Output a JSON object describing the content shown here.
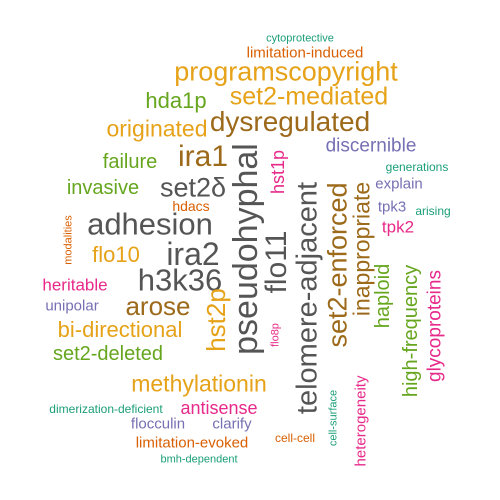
{
  "colors": {
    "orange_gold": "#E6A218",
    "brown": "#9C6A1A",
    "green": "#66A61E",
    "dark_gray": "#555555",
    "magenta": "#E7298A",
    "purple": "#7570B3",
    "teal": "#1B9E77",
    "burnt_orange": "#D95F02"
  },
  "words": [
    {
      "text": "cytoprotective",
      "color": "#1B9E77"
    },
    {
      "text": "limitation-induced",
      "color": "#D95F02"
    },
    {
      "text": "programscopyright",
      "color": "#E6A218"
    },
    {
      "text": "hda1p",
      "color": "#66A61E"
    },
    {
      "text": "set2-mediated",
      "color": "#E6A218"
    },
    {
      "text": "dysregulated",
      "color": "#9C6A1A"
    },
    {
      "text": "originated",
      "color": "#E6A218"
    },
    {
      "text": "ira1",
      "color": "#9C6A1A"
    },
    {
      "text": "pseudohyphal",
      "color": "#555555"
    },
    {
      "text": "hst1p",
      "color": "#E7298A"
    },
    {
      "text": "discernible",
      "color": "#7570B3"
    },
    {
      "text": "generations",
      "color": "#1B9E77"
    },
    {
      "text": "failure",
      "color": "#66A61E"
    },
    {
      "text": "set2δ",
      "color": "#555555"
    },
    {
      "text": "explain",
      "color": "#7570B3"
    },
    {
      "text": "invasive",
      "color": "#66A61E"
    },
    {
      "text": "hdacs",
      "color": "#D95F02"
    },
    {
      "text": "tpk3",
      "color": "#7570B3"
    },
    {
      "text": "arising",
      "color": "#1B9E77"
    },
    {
      "text": "adhesion",
      "color": "#555555"
    },
    {
      "text": "telomere-adjacent",
      "color": "#555555"
    },
    {
      "text": "set2-enforced",
      "color": "#9C6A1A"
    },
    {
      "text": "inappropriate",
      "color": "#9C6A1A"
    },
    {
      "text": "tpk2",
      "color": "#E7298A"
    },
    {
      "text": "modalities",
      "color": "#D95F02"
    },
    {
      "text": "flo10",
      "color": "#E6A218"
    },
    {
      "text": "ira2",
      "color": "#555555"
    },
    {
      "text": "flo11",
      "color": "#555555"
    },
    {
      "text": "h3k36",
      "color": "#555555"
    },
    {
      "text": "heritable",
      "color": "#E7298A"
    },
    {
      "text": "haploid",
      "color": "#66A61E"
    },
    {
      "text": "glycoproteins",
      "color": "#E7298A"
    },
    {
      "text": "unipolar",
      "color": "#7570B3"
    },
    {
      "text": "arose",
      "color": "#9C6A1A"
    },
    {
      "text": "hst2p",
      "color": "#E6A218"
    },
    {
      "text": "high-frequency",
      "color": "#66A61E"
    },
    {
      "text": "bi-directional",
      "color": "#E6A218"
    },
    {
      "text": "set2-deleted",
      "color": "#66A61E"
    },
    {
      "text": "flo8p",
      "color": "#E7298A"
    },
    {
      "text": "methylationin",
      "color": "#E6A218"
    },
    {
      "text": "heterogeneity",
      "color": "#E7298A"
    },
    {
      "text": "cell-surface",
      "color": "#1B9E77"
    },
    {
      "text": "antisense",
      "color": "#E7298A"
    },
    {
      "text": "dimerization-deficient",
      "color": "#1B9E77"
    },
    {
      "text": "flocculin",
      "color": "#7570B3"
    },
    {
      "text": "clarify",
      "color": "#7570B3"
    },
    {
      "text": "cell-cell",
      "color": "#D95F02"
    },
    {
      "text": "limitation-evoked",
      "color": "#D95F02"
    },
    {
      "text": "bmh-dependent",
      "color": "#1B9E77"
    }
  ]
}
